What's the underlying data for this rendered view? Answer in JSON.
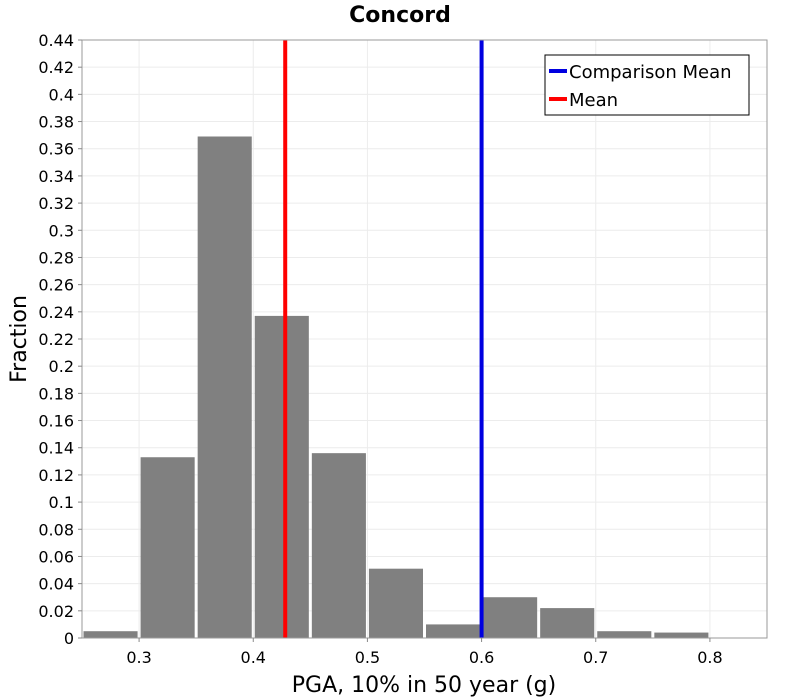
{
  "chart_data": {
    "type": "bar",
    "title": "Concord",
    "xlabel": "PGA, 10% in 50 year (g)",
    "ylabel": "Fraction",
    "xlim": [
      0.25,
      0.85
    ],
    "ylim": [
      0,
      0.44
    ],
    "x_ticks": [
      "0.3",
      "0.4",
      "0.5",
      "0.6",
      "0.7",
      "0.8"
    ],
    "x_tick_values": [
      0.3,
      0.4,
      0.5,
      0.6,
      0.7,
      0.8
    ],
    "y_ticks": [
      "0",
      "0.02",
      "0.04",
      "0.06",
      "0.08",
      "0.1",
      "0.12",
      "0.14",
      "0.16",
      "0.18",
      "0.2",
      "0.22",
      "0.24",
      "0.26",
      "0.28",
      "0.3",
      "0.32",
      "0.34",
      "0.36",
      "0.38",
      "0.4",
      "0.42",
      "0.44"
    ],
    "y_tick_values": [
      0,
      0.02,
      0.04,
      0.06,
      0.08,
      0.1,
      0.12,
      0.14,
      0.16,
      0.18,
      0.2,
      0.22,
      0.24,
      0.26,
      0.28,
      0.3,
      0.32,
      0.34,
      0.36,
      0.38,
      0.4,
      0.42,
      0.44
    ],
    "bin_width": 0.05,
    "bins": [
      {
        "x": 0.275,
        "value": 0.005
      },
      {
        "x": 0.325,
        "value": 0.133
      },
      {
        "x": 0.375,
        "value": 0.369
      },
      {
        "x": 0.425,
        "value": 0.237
      },
      {
        "x": 0.475,
        "value": 0.136
      },
      {
        "x": 0.525,
        "value": 0.051
      },
      {
        "x": 0.575,
        "value": 0.01
      },
      {
        "x": 0.625,
        "value": 0.03
      },
      {
        "x": 0.675,
        "value": 0.022
      },
      {
        "x": 0.725,
        "value": 0.005
      },
      {
        "x": 0.775,
        "value": 0.004
      }
    ],
    "bar_color": "#808080",
    "vlines": [
      {
        "name": "Comparison Mean",
        "x": 0.6,
        "color": "#0000e0"
      },
      {
        "name": "Mean",
        "x": 0.428,
        "color": "#ff0000"
      }
    ],
    "grid": true,
    "legend_position": "top-right"
  }
}
